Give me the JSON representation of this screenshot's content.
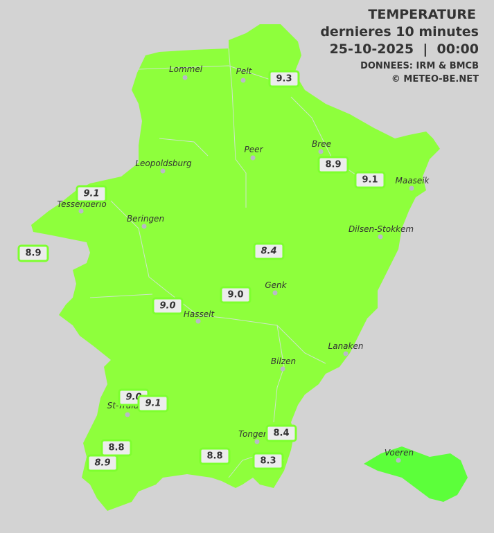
{
  "header": {
    "title": "TEMPERATURE",
    "subtitle": "dernieres 10 minutes",
    "datetime": "25-10-2025  |  00:00",
    "source": "DONNEES: IRM & BMCB",
    "copyright": "© METEO-BE.NET"
  },
  "colors": {
    "background": "#d3d3d3",
    "land": "#8eff3c",
    "voeren": "#5cff3a",
    "label_border": "#7dff2e"
  },
  "cities": [
    {
      "name": "Lommel"
    },
    {
      "name": "Pelt"
    },
    {
      "name": "Peer"
    },
    {
      "name": "Bree"
    },
    {
      "name": "Maaseik"
    },
    {
      "name": "Leopoldsburg"
    },
    {
      "name": "Tessenderlo"
    },
    {
      "name": "Beringen"
    },
    {
      "name": "Dilsen-Stokkem"
    },
    {
      "name": "Genk"
    },
    {
      "name": "Hasselt"
    },
    {
      "name": "Lanaken"
    },
    {
      "name": "Bilzen"
    },
    {
      "name": "St-Truiden"
    },
    {
      "name": "Tongeren"
    },
    {
      "name": "Voeren"
    }
  ],
  "stations": [
    {
      "value": "9.3"
    },
    {
      "value": "8.9"
    },
    {
      "value": "9.1"
    },
    {
      "value": "9.1"
    },
    {
      "value": "8.9"
    },
    {
      "value": "8.4"
    },
    {
      "value": "9.0"
    },
    {
      "value": "9.0"
    },
    {
      "value": "9.0"
    },
    {
      "value": "9.1"
    },
    {
      "value": "8.8"
    },
    {
      "value": "8.9"
    },
    {
      "value": "8.8"
    },
    {
      "value": "8.4"
    },
    {
      "value": "8.3"
    }
  ]
}
